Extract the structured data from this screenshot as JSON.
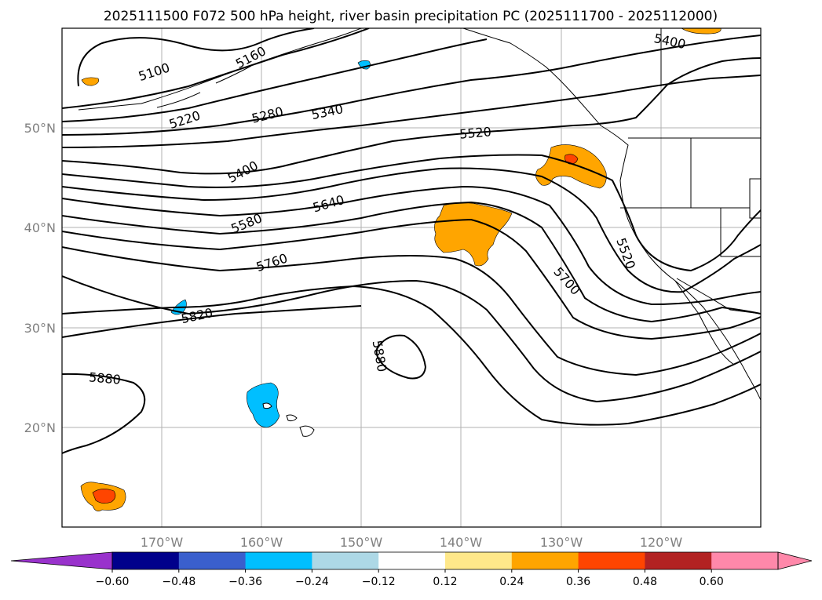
{
  "title": "2025111500 F072 500 hPa height, river basin precipitation PC (2025111700 - 2025112000)",
  "colors": {
    "contour": "#000000",
    "gridline": "#b0b0b0",
    "coastline": "#000000",
    "tick_label": "#808080",
    "positive_low": "#ffa500",
    "positive_mid": "#ff4500",
    "negative_low": "#00bfff",
    "light_blue": "#add8e6"
  },
  "map": {
    "projection": "equirectangular",
    "lon_range": [
      -180,
      -110
    ],
    "lat_range": [
      10,
      60
    ],
    "lat_labels": [
      "20°N",
      "30°N",
      "40°N",
      "50°N"
    ],
    "lon_labels": [
      "170°W",
      "160°W",
      "150°W",
      "140°W",
      "130°W",
      "120°W"
    ]
  },
  "contour_labels": [
    "5100",
    "5160",
    "5220",
    "5280",
    "5340",
    "5400",
    "5400",
    "5520",
    "5520",
    "5580",
    "5640",
    "5700",
    "5760",
    "5820",
    "5880",
    "5880"
  ],
  "colorbar": {
    "ticks": [
      "−0.60",
      "−0.48",
      "−0.36",
      "−0.24",
      "−0.12",
      "0.12",
      "0.24",
      "0.36",
      "0.48",
      "0.60"
    ],
    "colors": [
      "#9932cc",
      "#00008b",
      "#3a5fcd",
      "#00bfff",
      "#add8e6",
      "#ffffff",
      "#ffe88a",
      "#ffa500",
      "#ff4500",
      "#b22222",
      "#ff88aa",
      "#ff88aa"
    ]
  }
}
